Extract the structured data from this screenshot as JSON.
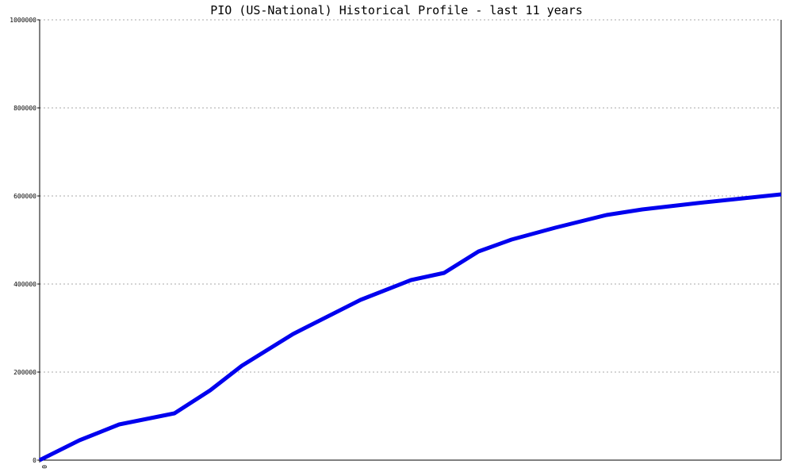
{
  "chart_data": {
    "type": "line",
    "title": "PIO (US-National) Historical Profile - last 11 years",
    "x": [
      0,
      0.59,
      1.18,
      2.0,
      2.53,
      3.0,
      3.76,
      4.76,
      5.51,
      6.0,
      6.51,
      7.0,
      7.65,
      8.41,
      8.94,
      9.76,
      11
    ],
    "series": [
      {
        "color": "#0000ee",
        "values": [
          0,
          45045,
          81081,
          106306,
          158559,
          214414,
          286486,
          363964,
          409009,
          425225,
          473874,
          500901,
          527928,
          556757,
          569369,
          583784,
          603604
        ]
      }
    ],
    "xlim": [
      0,
      11
    ],
    "xticks": [
      0
    ],
    "ylim": [
      0,
      1000000
    ],
    "yticks": [
      0,
      200000,
      400000,
      600000,
      800000,
      1000000
    ],
    "grid": true
  }
}
